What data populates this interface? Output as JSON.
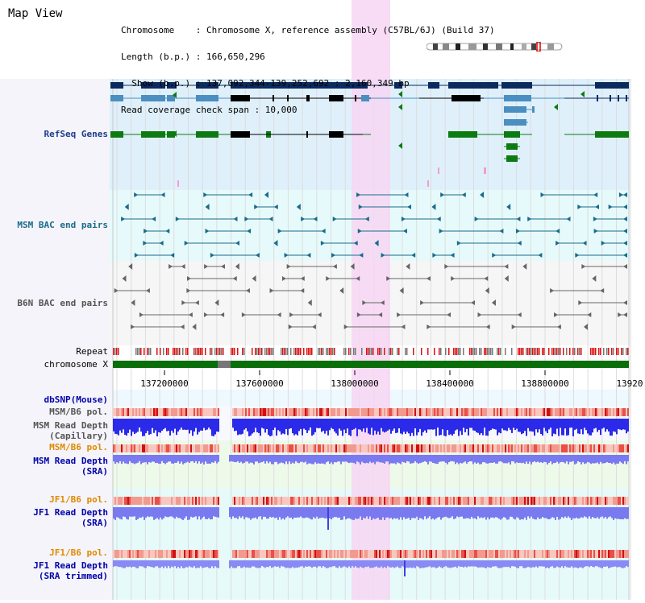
{
  "app": {
    "title": "Map View"
  },
  "header": {
    "lines": [
      "Chromosome    : Chromosome X, reference assembly (C57BL/6J) (Build 37)",
      "Length (b.p.) : 166,650,296",
      "  Show (b.p.) : 137,092,344-139,252,692 : 2,160,349 bp",
      "Read coverage check span : 10,000"
    ]
  },
  "tracks": {
    "refseq": {
      "label": "RefSeq Genes",
      "color": "#1c3d8f"
    },
    "msm_bac": {
      "label": "MSM BAC end pairs",
      "color": "#1a6b8a"
    },
    "b6n_bac": {
      "label": "B6N BAC end pairs",
      "color": "#555555"
    },
    "repeat": {
      "label": "Repeat"
    },
    "chromosome": {
      "label": "chromosome X"
    },
    "dbsnp": {
      "label": "dbSNP(Mouse)",
      "color": "#0000aa"
    },
    "msm_b6_pol": {
      "label": "MSM/B6 pol.",
      "color": "#555555"
    },
    "msm_depth_cap": {
      "label_line1": "MSM Read Depth",
      "label_line2": "(Capillary)",
      "color": "#555555"
    },
    "msm_b6_pol2": {
      "label": "MSM/B6 pol.",
      "color": "#e08a00"
    },
    "msm_depth_sra": {
      "label_line1": "MSM Read Depth",
      "label_line2": "(SRA)",
      "color": "#0000aa"
    },
    "jf1_b6_pol": {
      "label": "JF1/B6 pol.",
      "color": "#e08a00"
    },
    "jf1_depth_sra": {
      "label_line1": "JF1 Read Depth",
      "label_line2": "(SRA)",
      "color": "#0000aa"
    },
    "jf1_b6_pol2": {
      "label": "JF1/B6 pol.",
      "color": "#e08a00"
    },
    "jf1_depth_trim": {
      "label_line1": "JF1 Read Depth",
      "label_line2": "(SRA trimmed)",
      "color": "#0000aa"
    }
  },
  "axis": {
    "ticks": [
      "137200000",
      "137600000",
      "138000000",
      "138400000",
      "138800000",
      "13920"
    ]
  },
  "colors": {
    "highlight": "#f7d6f3",
    "gene_dark": "#0b2a5e",
    "gene_light": "#4a8fc0",
    "gene_green": "#0d7a12",
    "chrom": "#0a6e0a",
    "pol_red": "#e02020",
    "depth_blue": "#2020e0"
  }
}
